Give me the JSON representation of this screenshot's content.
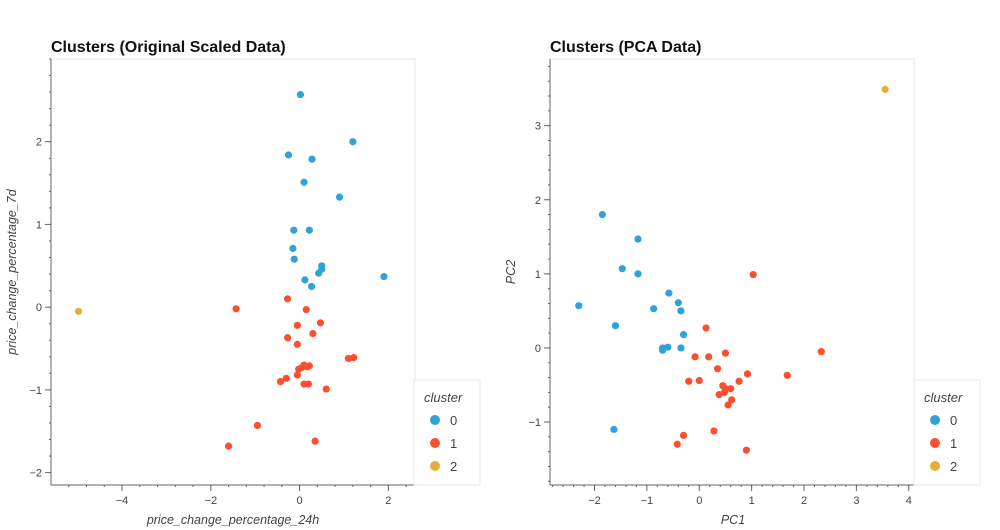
{
  "chart_data": [
    {
      "type": "scatter",
      "title": "Clusters (Original Scaled Data)",
      "xlabel": "price_change_percentage_24h",
      "ylabel": "price_change_percentage_7d",
      "xlim": [
        -5.6,
        2.6
      ],
      "ylim": [
        -2.15,
        3.0
      ],
      "xticks": [
        -4,
        -2,
        0,
        2
      ],
      "yticks": [
        -2,
        -1,
        0,
        1,
        2
      ],
      "grid": false,
      "legend": {
        "title": "cluster",
        "placement": "bottom-right-outside"
      },
      "series": [
        {
          "name": "0",
          "color": "#30a2da",
          "x": [
            0.02,
            -0.25,
            0.28,
            1.2,
            0.1,
            0.9,
            -0.13,
            0.22,
            -0.15,
            -0.12,
            0.12,
            0.43,
            0.5,
            0.5,
            0.27,
            1.9
          ],
          "y": [
            2.57,
            1.84,
            1.79,
            2.0,
            1.51,
            1.33,
            0.93,
            0.93,
            0.71,
            0.58,
            0.33,
            0.41,
            0.46,
            0.5,
            0.25,
            0.37
          ]
        },
        {
          "name": "1",
          "color": "#fc4f30",
          "x": [
            -1.43,
            -0.27,
            0.15,
            -0.05,
            0.47,
            -0.27,
            0.3,
            -0.05,
            1.1,
            1.22,
            0.1,
            0.05,
            0.17,
            0.22,
            -0.02,
            -0.05,
            -0.3,
            -0.43,
            0.1,
            0.2,
            0.6,
            -0.95,
            0.35,
            -1.6
          ],
          "y": [
            -0.02,
            0.1,
            -0.03,
            -0.22,
            -0.19,
            -0.37,
            -0.32,
            -0.45,
            -0.62,
            -0.61,
            -0.7,
            -0.73,
            -0.72,
            -0.71,
            -0.75,
            -0.82,
            -0.86,
            -0.9,
            -0.93,
            -0.93,
            -0.99,
            -1.43,
            -1.62,
            -1.68
          ]
        },
        {
          "name": "2",
          "color": "#e5ae38",
          "x": [
            -4.98
          ],
          "y": [
            -0.05
          ]
        }
      ]
    },
    {
      "type": "scatter",
      "title": "Clusters (PCA Data)",
      "xlabel": "PC1",
      "ylabel": "PC2",
      "xlim": [
        -2.85,
        4.1
      ],
      "ylim": [
        -1.85,
        3.9
      ],
      "xticks": [
        -2,
        -1,
        0,
        1,
        2,
        3,
        4
      ],
      "yticks": [
        -1,
        0,
        1,
        2,
        3
      ],
      "grid": false,
      "legend": {
        "title": "cluster",
        "placement": "bottom-right-outside"
      },
      "series": [
        {
          "name": "0",
          "color": "#30a2da",
          "x": [
            -1.85,
            -1.17,
            -1.47,
            -1.17,
            -2.3,
            -0.58,
            -0.4,
            -0.87,
            -0.35,
            -1.6,
            -0.3,
            -0.7,
            -0.6,
            -0.7,
            -0.35,
            -1.63
          ],
          "y": [
            1.8,
            1.47,
            1.07,
            1.0,
            0.57,
            0.74,
            0.61,
            0.53,
            0.5,
            0.3,
            0.18,
            0.0,
            0.01,
            -0.03,
            0.0,
            -1.1
          ]
        },
        {
          "name": "1",
          "color": "#fc4f30",
          "x": [
            1.03,
            0.13,
            -0.08,
            0.18,
            0.5,
            2.33,
            0.35,
            1.68,
            0.92,
            -0.2,
            0.0,
            0.76,
            0.45,
            0.5,
            0.6,
            0.38,
            0.62,
            0.48,
            0.55,
            0.28,
            -0.3,
            -0.42,
            0.9
          ],
          "y": [
            0.99,
            0.27,
            -0.12,
            -0.12,
            -0.07,
            -0.05,
            -0.28,
            -0.37,
            -0.35,
            -0.45,
            -0.44,
            -0.45,
            -0.51,
            -0.55,
            -0.55,
            -0.63,
            -0.7,
            -0.6,
            -0.77,
            -1.12,
            -1.18,
            -1.3,
            -1.38
          ]
        },
        {
          "name": "2",
          "color": "#e5ae38",
          "x": [
            3.55
          ],
          "y": [
            3.49
          ]
        }
      ]
    }
  ]
}
